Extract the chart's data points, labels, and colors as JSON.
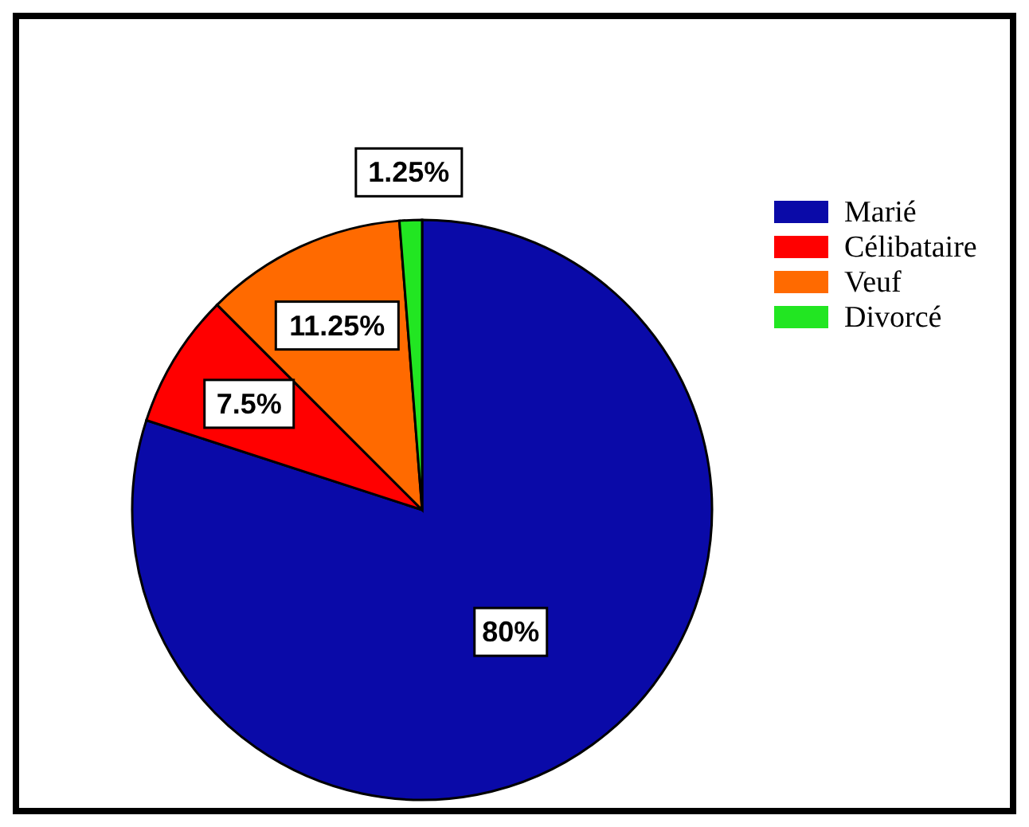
{
  "chart_data": {
    "type": "pie",
    "categories": [
      "Marié",
      "Célibataire",
      "Veuf",
      "Divorcé"
    ],
    "values": [
      80,
      7.5,
      11.25,
      1.25
    ],
    "colors": [
      "#0a0aa8",
      "#ff0000",
      "#ff6a00",
      "#22e622"
    ],
    "value_labels": [
      "80%",
      "7.5%",
      "11.25%",
      "1.25%"
    ],
    "legend": "right"
  }
}
